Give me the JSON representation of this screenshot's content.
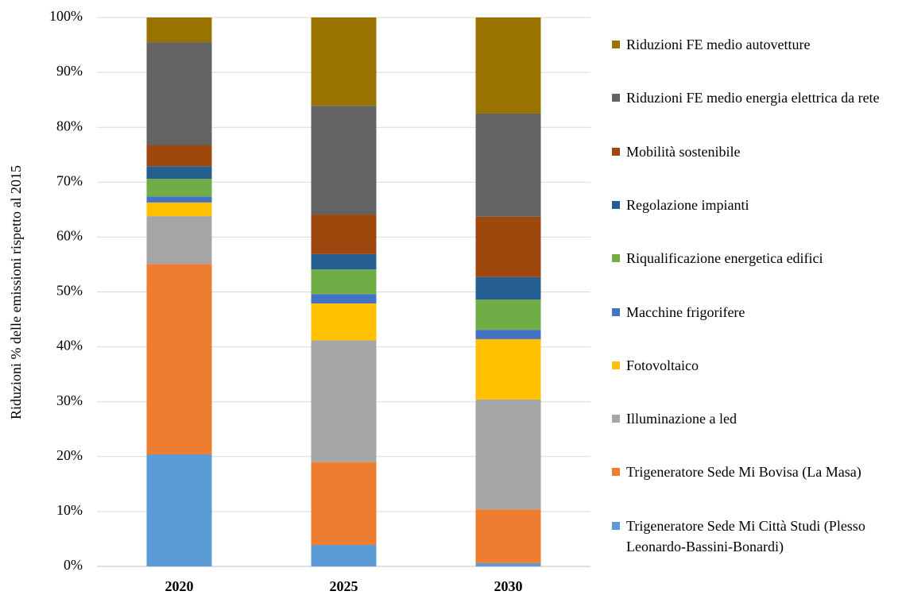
{
  "chart_data": {
    "type": "stacked_bar",
    "ylabel": "Riduzioni % delle emissioni rispetto al 2015",
    "categories": [
      "2020",
      "2025",
      "2030"
    ],
    "ylim": [
      0,
      100
    ],
    "yticks": [
      {
        "value": 0,
        "label": "0%"
      },
      {
        "value": 10,
        "label": "10%"
      },
      {
        "value": 20,
        "label": "20%"
      },
      {
        "value": 30,
        "label": "30%"
      },
      {
        "value": 40,
        "label": "40%"
      },
      {
        "value": 50,
        "label": "50%"
      },
      {
        "value": 60,
        "label": "60%"
      },
      {
        "value": 70,
        "label": "70%"
      },
      {
        "value": 80,
        "label": "80%"
      },
      {
        "value": 90,
        "label": "90%"
      },
      {
        "value": 100,
        "label": "100%"
      }
    ],
    "grid": true,
    "legend": "right",
    "series": [
      {
        "name": "Trigeneratore Sede Mi Città Studi (Plesso Leonardo-Bassini-Bonardi)",
        "color": "#5b9bd5",
        "values": [
          20.4,
          3.9,
          0.6
        ]
      },
      {
        "name": "Trigeneratore Sede Mi Bovisa (La Masa)",
        "color": "#ed7d31",
        "values": [
          34.7,
          15.1,
          9.8
        ]
      },
      {
        "name": "Illuminazione a led",
        "color": "#a5a5a5",
        "values": [
          8.7,
          22.2,
          20.0
        ]
      },
      {
        "name": "Fotovoltaico",
        "color": "#ffc000",
        "values": [
          2.5,
          6.7,
          11.0
        ]
      },
      {
        "name": "Macchine frigorifere",
        "color": "#4472c4",
        "values": [
          1.1,
          1.7,
          1.7
        ]
      },
      {
        "name": "Riqualificazione energetica edifici",
        "color": "#70ad47",
        "values": [
          3.2,
          4.5,
          5.5
        ]
      },
      {
        "name": "Regolazione impianti",
        "color": "#255e91",
        "values": [
          2.3,
          2.8,
          4.1
        ]
      },
      {
        "name": "Mobilità sostenibile",
        "color": "#9e480e",
        "values": [
          3.8,
          7.2,
          11.0
        ]
      },
      {
        "name": "Riduzioni FE medio energia elettrica da rete",
        "color": "#636363",
        "values": [
          18.8,
          19.8,
          18.8
        ]
      },
      {
        "name": "Riduzioni FE medio autovetture",
        "color": "#997300",
        "values": [
          4.5,
          16.1,
          17.5
        ]
      }
    ]
  }
}
